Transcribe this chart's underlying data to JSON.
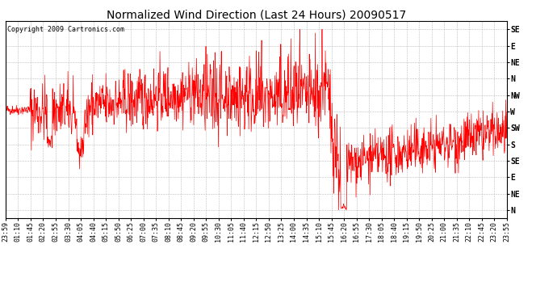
{
  "title": "Normalized Wind Direction (Last 24 Hours) 20090517",
  "copyright_text": "Copyright 2009 Cartronics.com",
  "line_color": "#ff0000",
  "bg_color": "#ffffff",
  "plot_bg_color": "#ffffff",
  "grid_color": "#aaaaaa",
  "ytick_labels": [
    "SE",
    "E",
    "NE",
    "N",
    "NW",
    "W",
    "SW",
    "S",
    "SE",
    "E",
    "NE",
    "N"
  ],
  "ytick_values": [
    11,
    10,
    9,
    8,
    7,
    6,
    5,
    4,
    3,
    2,
    1,
    0
  ],
  "xtick_labels": [
    "23:59",
    "01:10",
    "01:45",
    "02:20",
    "02:55",
    "03:30",
    "04:05",
    "04:40",
    "05:15",
    "05:50",
    "06:25",
    "07:00",
    "07:35",
    "08:10",
    "08:45",
    "09:20",
    "09:55",
    "10:30",
    "11:05",
    "11:40",
    "12:15",
    "12:50",
    "13:25",
    "14:00",
    "14:35",
    "15:10",
    "15:45",
    "16:20",
    "16:55",
    "17:30",
    "18:05",
    "18:40",
    "19:15",
    "19:50",
    "20:25",
    "21:00",
    "21:35",
    "22:10",
    "22:45",
    "23:20",
    "23:55"
  ],
  "title_fontsize": 10,
  "copyright_fontsize": 6,
  "tick_fontsize": 6,
  "ytick_fontsize": 7,
  "figsize": [
    6.9,
    3.75
  ],
  "dpi": 100
}
